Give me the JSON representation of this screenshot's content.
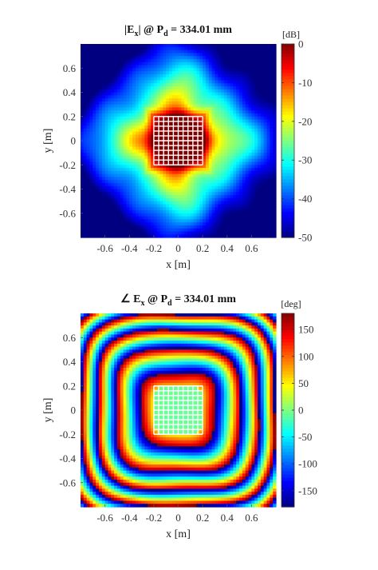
{
  "chart_data": [
    {
      "type": "heatmap",
      "title": {
        "pre": "|E",
        "sub": "x",
        "mid": "| @ P",
        "sub2": "d",
        "post": " = 334.01 mm"
      },
      "xlabel": "x [m]",
      "ylabel": "y [m]",
      "xlim": [
        -0.8,
        0.8
      ],
      "ylim": [
        -0.8,
        0.8
      ],
      "xticks": [
        -0.6,
        -0.4,
        -0.2,
        0,
        0.2,
        0.4,
        0.6
      ],
      "xtick_labels": [
        "-0.6",
        "-0.4",
        "-0.2",
        "0",
        "0.2",
        "0.4",
        "0.6"
      ],
      "yticks": [
        0.6,
        0.4,
        0.2,
        0,
        -0.2,
        -0.4,
        -0.6
      ],
      "ytick_labels": [
        "0.6",
        "0.4",
        "0.2",
        "0",
        "-0.2",
        "-0.4",
        "-0.6"
      ],
      "colorbar": {
        "label": "[dB]",
        "range": [
          -50,
          0
        ],
        "ticks": [
          0,
          -10,
          -20,
          -30,
          -40,
          -50
        ],
        "tick_labels": [
          "0",
          "-10",
          "-20",
          "-30",
          "-40",
          "-50"
        ],
        "colormap": "jet"
      },
      "field": "magnitude_db",
      "aperture_grid": {
        "x_range": [
          -0.2,
          0.2
        ],
        "y_range": [
          -0.2,
          0.2
        ],
        "divisions": 10,
        "color": "#ffffff"
      }
    },
    {
      "type": "heatmap",
      "title": {
        "pre": "∠ E",
        "sub": "x",
        "mid": " @ P",
        "sub2": "d",
        "post": " = 334.01 mm"
      },
      "xlabel": "x [m]",
      "ylabel": "y [m]",
      "xlim": [
        -0.8,
        0.8
      ],
      "ylim": [
        -0.8,
        0.8
      ],
      "xticks": [
        -0.6,
        -0.4,
        -0.2,
        0,
        0.2,
        0.4,
        0.6
      ],
      "xtick_labels": [
        "-0.6",
        "-0.4",
        "-0.2",
        "0",
        "0.2",
        "0.4",
        "0.6"
      ],
      "yticks": [
        0.6,
        0.4,
        0.2,
        0,
        -0.2,
        -0.4,
        -0.6
      ],
      "ytick_labels": [
        "0.6",
        "0.4",
        "0.2",
        "0",
        "-0.2",
        "-0.4",
        "-0.6"
      ],
      "colorbar": {
        "label": "[deg]",
        "range": [
          -180,
          180
        ],
        "ticks": [
          150,
          100,
          50,
          0,
          -50,
          -100,
          -150
        ],
        "tick_labels": [
          "150",
          "100",
          "50",
          "0",
          "-50",
          "-100",
          "-150"
        ],
        "colormap": "jet"
      },
      "field": "phase_deg",
      "aperture_grid": {
        "x_range": [
          -0.2,
          0.2
        ],
        "y_range": [
          -0.2,
          0.2
        ],
        "divisions": 10,
        "color": "#ffffff"
      }
    }
  ]
}
